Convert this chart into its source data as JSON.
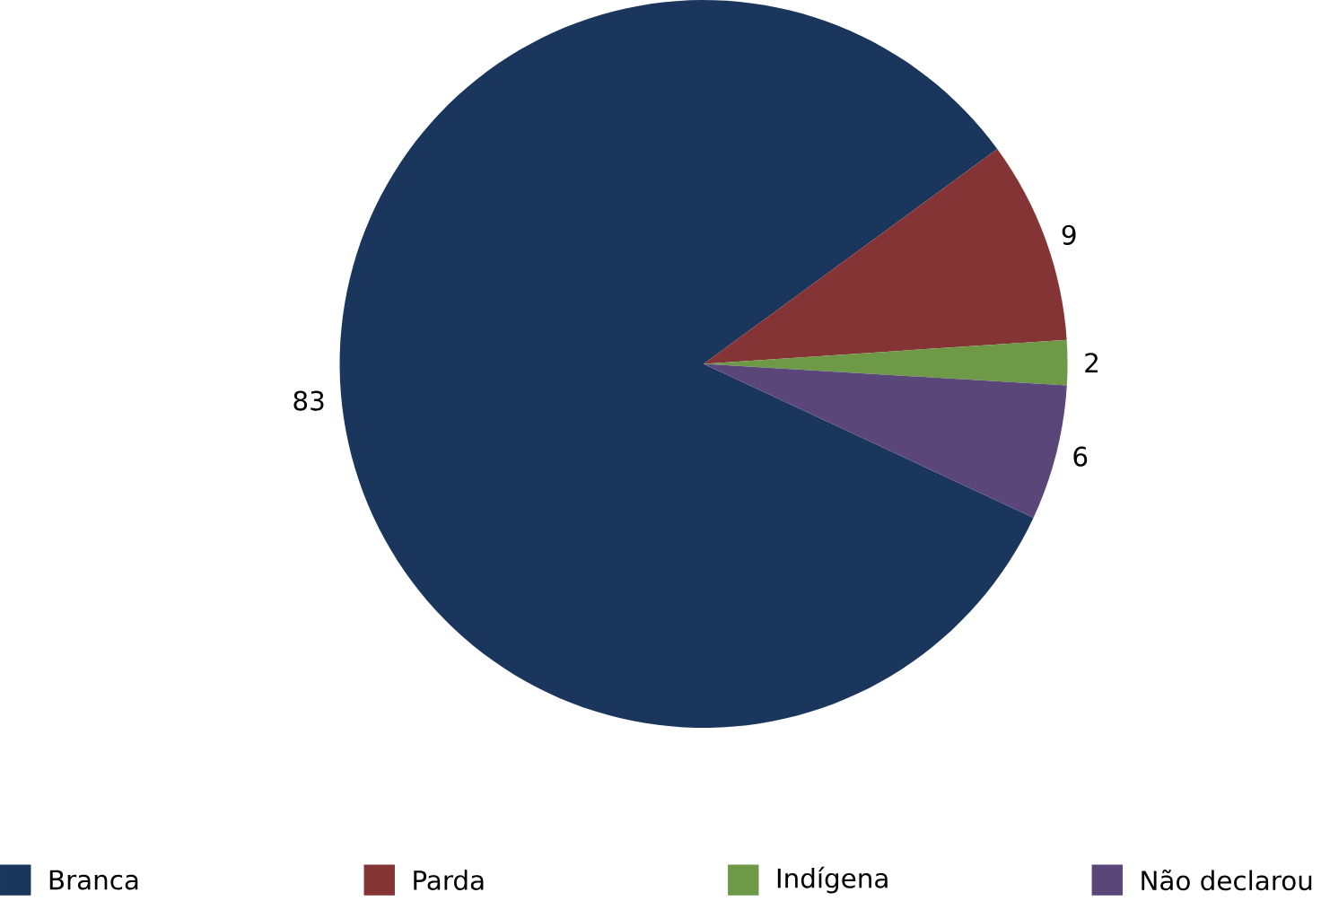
{
  "chart_data": {
    "type": "pie",
    "categories": [
      "Branca",
      "Parda",
      "Indígena",
      "Não declarou"
    ],
    "values": [
      83,
      9,
      2,
      6
    ],
    "colors": [
      "#1b365d",
      "#843434",
      "#6e9a48",
      "#5a4679"
    ],
    "data_labels": true,
    "legend": "bottom"
  }
}
